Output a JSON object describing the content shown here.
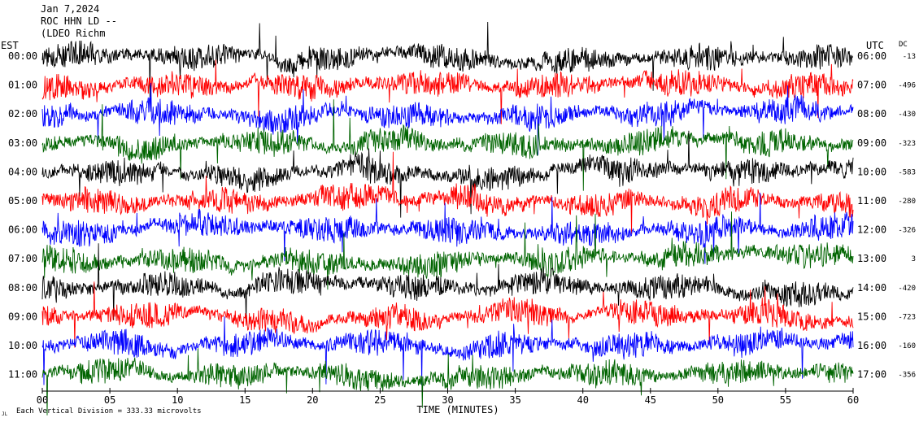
{
  "header": {
    "date": "Jan 7,2024",
    "station": "ROC HHN LD --",
    "location": "(LDEO Richm"
  },
  "chart_data": {
    "type": "line",
    "title": "Jan 7,2024",
    "left_axis_label": "EST",
    "right_axis_label": "UTC",
    "offset_label": "DC",
    "xlabel": "TIME (MINUTES)",
    "scale_note": "Each Vertical Division =  333.33 microvolts",
    "corner_mark": "JL",
    "xlim": [
      0,
      60
    ],
    "x_ticks": [
      "00",
      "05",
      "10",
      "15",
      "20",
      "25",
      "30",
      "35",
      "40",
      "45",
      "50",
      "55",
      "60"
    ],
    "trace_colors": [
      "#000000",
      "#ff0000",
      "#0000ff",
      "#006400"
    ],
    "traces": [
      {
        "est": "00:00",
        "utc": "06:00",
        "dc": "-13"
      },
      {
        "est": "01:00",
        "utc": "07:00",
        "dc": "-496"
      },
      {
        "est": "02:00",
        "utc": "08:00",
        "dc": "-430"
      },
      {
        "est": "03:00",
        "utc": "09:00",
        "dc": "-323"
      },
      {
        "est": "04:00",
        "utc": "10:00",
        "dc": "-583"
      },
      {
        "est": "05:00",
        "utc": "11:00",
        "dc": "-280"
      },
      {
        "est": "06:00",
        "utc": "12:00",
        "dc": "-326"
      },
      {
        "est": "07:00",
        "utc": "13:00",
        "dc": "3"
      },
      {
        "est": "08:00",
        "utc": "14:00",
        "dc": "-420"
      },
      {
        "est": "09:00",
        "utc": "15:00",
        "dc": "-723"
      },
      {
        "est": "10:00",
        "utc": "16:00",
        "dc": "-160"
      },
      {
        "est": "11:00",
        "utc": "17:00",
        "dc": "-356"
      }
    ]
  }
}
